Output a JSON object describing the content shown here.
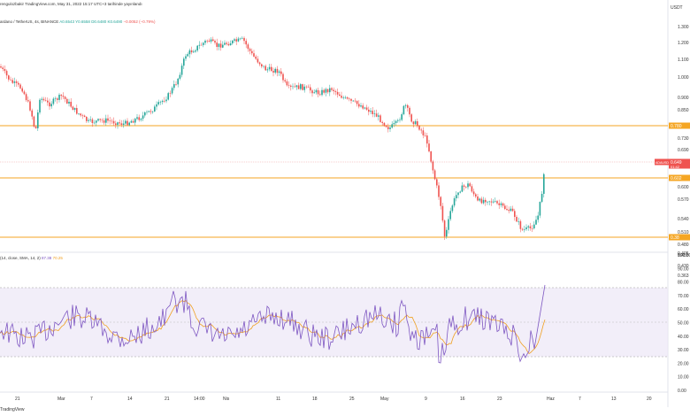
{
  "header": {
    "text": "rengulozbakir TradingView.com, May 31, 2022 15:17 UTC+3 tarihinde yayınlandı"
  },
  "legend": {
    "symbol": "ardano / TetherUS, 4s, BINANCE",
    "open": "A0.6543",
    "high": "Y0.6558",
    "low": "D0.6480",
    "close": "K0.6490",
    "change": "−0.0052 (−0.79%)"
  },
  "rsi_legend": {
    "label": "(14, close, SMA, 14, 2)",
    "value1": "87.38",
    "value2": "70.25"
  },
  "price_axis": {
    "currency": "USDT",
    "ticks": [
      "1.300",
      "1.200",
      "1.100",
      "1.000",
      "0.900",
      "0.850",
      "0.730",
      "0.690",
      "0.600",
      "0.570",
      "0.540",
      "0.510",
      "0.480",
      "0.455",
      "0.430",
      "0.405",
      "0.363"
    ],
    "current_tag": "ADAUSDT",
    "current_value": "0.649",
    "current_sub": "01:42",
    "level_tags": [
      "0.780",
      "0.602",
      "0.38"
    ],
    "colors": {
      "up": "#26a69a",
      "down": "#ef5350",
      "level": "#f5a623",
      "rsi": "#7e57c2",
      "rsi_ma": "#f0a020"
    }
  },
  "rsi_axis": {
    "ticks": [
      "100.00",
      "90.00",
      "80.00",
      "70.00",
      "60.00",
      "50.00",
      "40.00",
      "30.00",
      "20.00",
      "10.00",
      "0.00"
    ]
  },
  "time_axis": {
    "labels": [
      "21",
      "Mar",
      "7",
      "14",
      "21",
      "14:00",
      "Nis",
      "11",
      "18",
      "25",
      "May",
      "9",
      "16",
      "23",
      "Haz",
      "7",
      "13",
      "20"
    ]
  },
  "footer": {
    "brand": "TradingView"
  }
}
